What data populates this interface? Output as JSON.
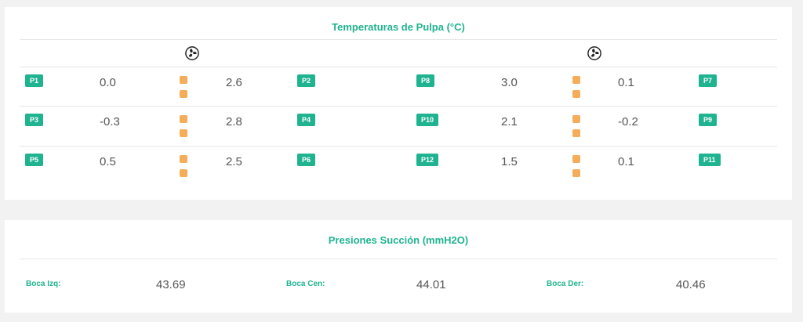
{
  "temperaturas": {
    "title": "Temperaturas de Pulpa (°C)",
    "fan_icon": "fan-icon",
    "left": {
      "rows": [
        {
          "tag_a": "P1",
          "val_a": "0.0",
          "val_b": "2.6",
          "tag_b": "P2"
        },
        {
          "tag_a": "P3",
          "val_a": "-0.3",
          "val_b": "2.8",
          "tag_b": "P4"
        },
        {
          "tag_a": "P5",
          "val_a": "0.5",
          "val_b": "2.5",
          "tag_b": "P6"
        }
      ]
    },
    "right": {
      "rows": [
        {
          "tag_a": "P8",
          "val_a": "3.0",
          "val_b": "0.1",
          "tag_b": "P7"
        },
        {
          "tag_a": "P10",
          "val_a": "2.1",
          "val_b": "-0.2",
          "tag_b": "P9"
        },
        {
          "tag_a": "P12",
          "val_a": "1.5",
          "val_b": "0.1",
          "tag_b": "P11"
        }
      ]
    },
    "colors": {
      "accent": "#1fb390",
      "indicator": "#f5ad5a"
    }
  },
  "presiones": {
    "title": "Presiones Succión (mmH2O)",
    "items": [
      {
        "label": "Boca Izq:",
        "value": "43.69"
      },
      {
        "label": "Boca Cen:",
        "value": "44.01"
      },
      {
        "label": "Boca Der:",
        "value": "40.46"
      }
    ]
  }
}
